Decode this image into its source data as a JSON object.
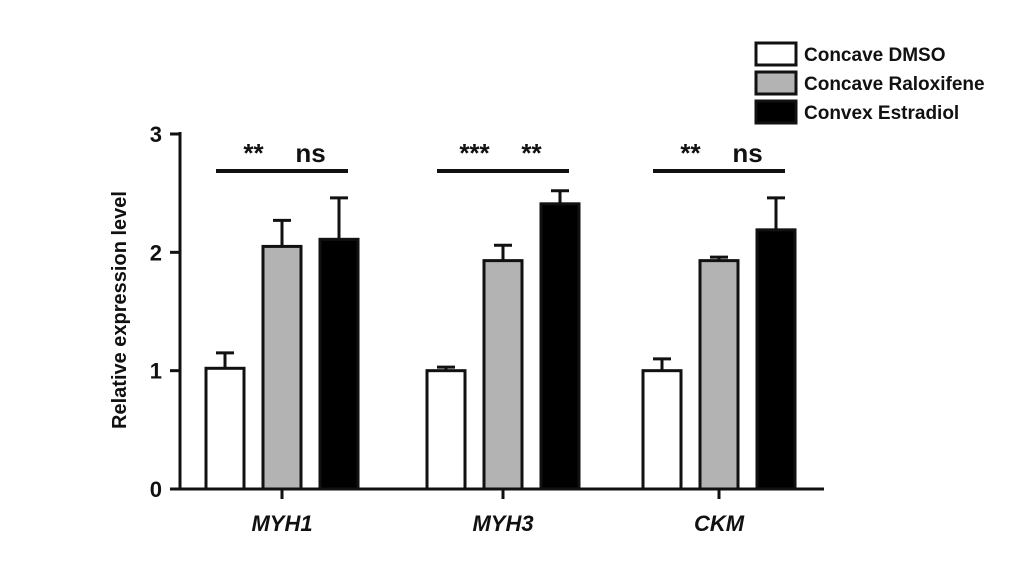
{
  "chart_data": {
    "type": "bar",
    "ylabel": "Relative expression level",
    "ylim": [
      0,
      3
    ],
    "yticks": [
      0,
      1,
      2,
      3
    ],
    "categories": [
      "MYH1",
      "MYH3",
      "CKM"
    ],
    "series": [
      {
        "name": "Concave DMSO",
        "color": "#ffffff",
        "values": [
          1.02,
          1.0,
          1.0
        ],
        "errors": [
          0.13,
          0.03,
          0.1
        ]
      },
      {
        "name": "Concave Raloxifene",
        "color": "#b3b3b3",
        "values": [
          2.05,
          1.93,
          1.93
        ],
        "errors": [
          0.22,
          0.13,
          0.03
        ]
      },
      {
        "name": "Convex Estradiol",
        "color": "#000000",
        "values": [
          2.11,
          2.41,
          2.19
        ],
        "errors": [
          0.35,
          0.11,
          0.27
        ]
      }
    ],
    "significance": [
      {
        "category": 0,
        "pair": [
          0,
          1
        ],
        "label": "**"
      },
      {
        "category": 0,
        "pair": [
          1,
          2
        ],
        "label": "ns"
      },
      {
        "category": 1,
        "pair": [
          0,
          1
        ],
        "label": "***"
      },
      {
        "category": 1,
        "pair": [
          1,
          2
        ],
        "label": "**"
      },
      {
        "category": 2,
        "pair": [
          0,
          1
        ],
        "label": "**"
      },
      {
        "category": 2,
        "pair": [
          1,
          2
        ],
        "label": "ns"
      }
    ],
    "grid": false,
    "legend_position": "top-right"
  }
}
